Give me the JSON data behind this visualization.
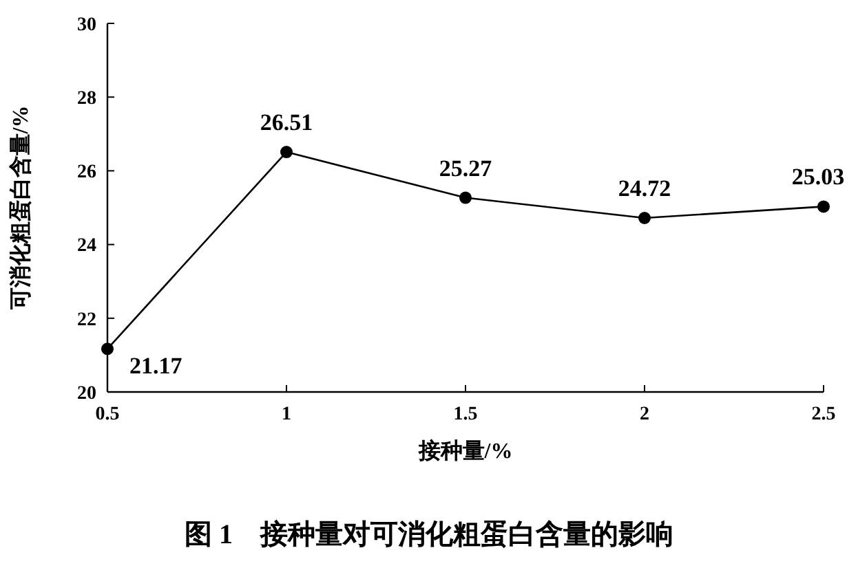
{
  "chart_data": {
    "type": "line",
    "title": "图 1　接种量对可消化粗蛋白含量的影响",
    "xlabel": "接种量/%",
    "ylabel": "可消化粗蛋白含量/%",
    "x": [
      0.5,
      1,
      1.5,
      2,
      2.5
    ],
    "series": [
      {
        "color": "#000000",
        "values": [
          21.17,
          26.51,
          25.27,
          24.72,
          25.03
        ]
      }
    ],
    "xlim": [
      0.5,
      2.5
    ],
    "xticks": [
      0.5,
      1,
      1.5,
      2,
      2.5
    ],
    "ylim": [
      20,
      30
    ],
    "yticks": [
      20,
      22,
      24,
      26,
      28,
      30
    ],
    "marker": "circle",
    "line_style": "solid",
    "data_labels": true
  }
}
